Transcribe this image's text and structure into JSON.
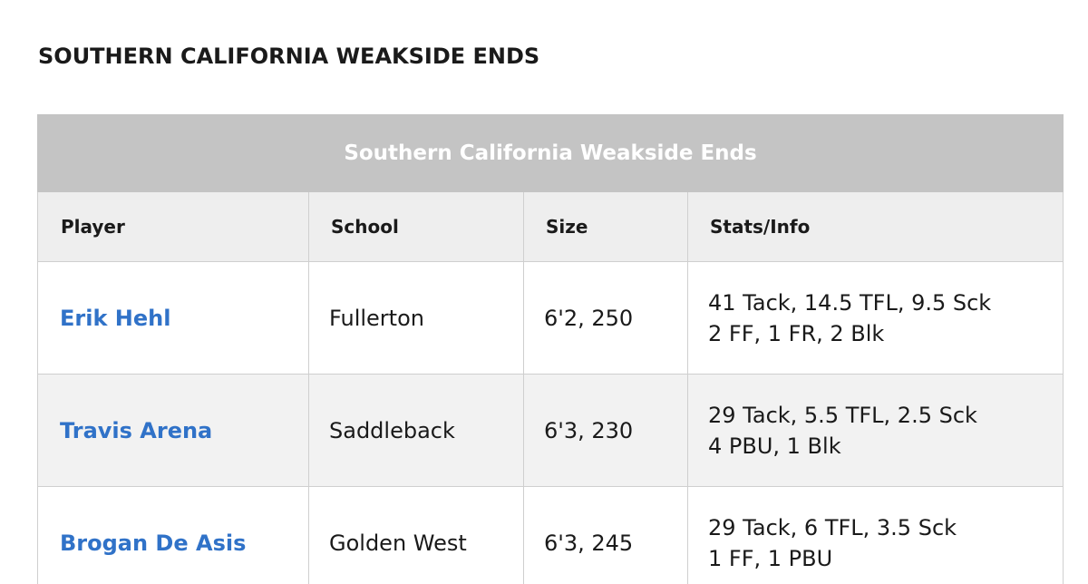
{
  "page": {
    "heading": "SOUTHERN CALIFORNIA WEAKSIDE ENDS"
  },
  "table": {
    "caption": "Southern California Weakside Ends",
    "headers": [
      "Player",
      "School",
      "Size",
      "Stats/Info"
    ],
    "rows": [
      {
        "player": "Erik Hehl",
        "school": "Fullerton",
        "size": "6'2, 250",
        "stats": [
          "41 Tack, 14.5 TFL, 9.5 Sck",
          "2 FF, 1 FR, 2 Blk"
        ]
      },
      {
        "player": "Travis Arena",
        "school": "Saddleback",
        "size": "6'3, 230",
        "stats": [
          "29 Tack, 5.5 TFL, 2.5 Sck",
          "4 PBU, 1 Blk"
        ]
      },
      {
        "player": "Brogan De Asis",
        "school": "Golden West",
        "size": "6'3, 245",
        "stats": [
          "29 Tack, 6 TFL, 3.5 Sck",
          "1 FF, 1 PBU"
        ]
      }
    ]
  },
  "colors": {
    "caption_bg": "#c4c4c4",
    "header_bg": "#eeeeee",
    "link": "#3072c8",
    "border": "#cfcfcf"
  }
}
